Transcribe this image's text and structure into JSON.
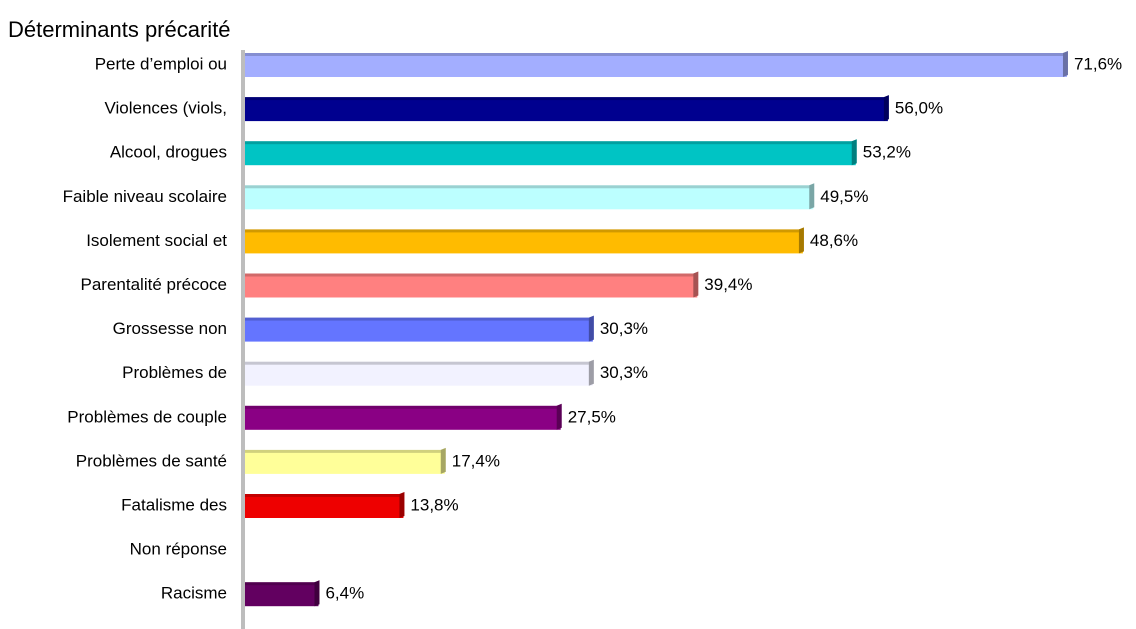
{
  "chart_data": {
    "type": "hbar",
    "title": "Déterminants précarité",
    "categories": [
      "Perte  d’emploi ou",
      "Violences (viols,",
      "Alcool, drogues",
      "Faible niveau scolaire",
      "Isolement social et",
      "Parentalité précoce",
      "Grossesse non",
      "Problèmes de",
      "Problèmes de couple",
      "Problèmes de santé",
      "Fatalisme des",
      "Non réponse",
      "Racisme"
    ],
    "values": [
      71.6,
      56.0,
      53.2,
      49.5,
      48.6,
      39.4,
      30.3,
      30.3,
      27.5,
      17.4,
      13.8,
      null,
      6.4
    ],
    "value_labels": [
      "71,6%",
      "56,0%",
      "53,2%",
      "49,5%",
      "48,6%",
      "39,4%",
      "30,3%",
      "30,3%",
      "27,5%",
      "17,4%",
      "13,8%",
      null,
      "6,4%"
    ],
    "colors": [
      "#a3aeff",
      "#00008f",
      "#00c4c4",
      "#bcffff",
      "#ffbb00",
      "#ff8080",
      "#6475ff",
      "#f2f2ff",
      "#8a0084",
      "#ffff99",
      "#ee0000",
      null,
      "#620060"
    ],
    "xlim": [
      0,
      75
    ]
  }
}
